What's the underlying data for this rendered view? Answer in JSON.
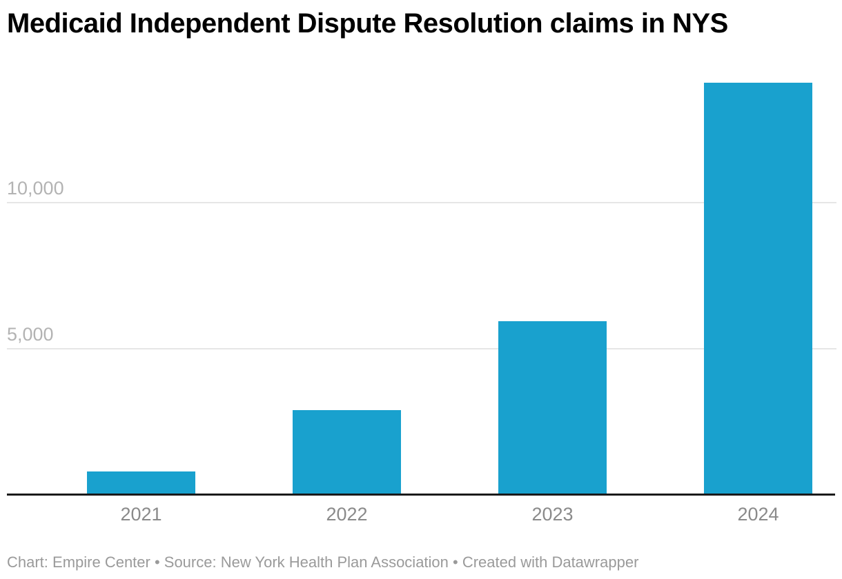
{
  "title": "Medicaid Independent Dispute Resolution claims in NYS",
  "footer": "Chart: Empire Center • Source: New York Health Plan Association • Created with Datawrapper",
  "colors": {
    "bar": "#19a1ce",
    "axis": "#1a1a1a",
    "gridline": "#e6e6e6",
    "y_tick_label": "#b3b3b3",
    "x_tick_label": "#8a8a8a",
    "footer": "#9a9a9a",
    "title": "#000000"
  },
  "chart_data": {
    "type": "bar",
    "title": "Medicaid Independent Dispute Resolution claims in NYS",
    "categories": [
      "2021",
      "2022",
      "2023",
      "2024"
    ],
    "values": [
      750,
      2850,
      5900,
      14100
    ],
    "xlabel": "",
    "ylabel": "",
    "ylim": [
      0,
      14800
    ],
    "yticks": [
      {
        "value": 5000,
        "label": "5,000"
      },
      {
        "value": 10000,
        "label": "10,000"
      }
    ],
    "grid": "horizontal-only",
    "legend": "none",
    "source_note": "Chart: Empire Center • Source: New York Health Plan Association • Created with Datawrapper"
  }
}
